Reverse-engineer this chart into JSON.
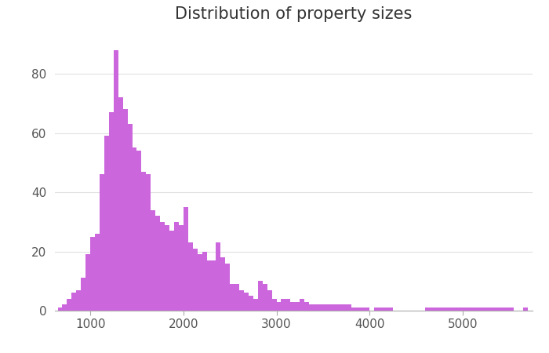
{
  "title": "Distribution of property sizes",
  "title_fontsize": 15,
  "bar_color": "#cc66dd",
  "bar_edgecolor": "#cc66dd",
  "background_color": "#ffffff",
  "xlim": [
    620,
    5750
  ],
  "ylim": [
    0,
    93
  ],
  "yticks": [
    0,
    20,
    40,
    60,
    80
  ],
  "xticks": [
    1000,
    2000,
    3000,
    4000,
    5000
  ],
  "grid_color": "#cccccc",
  "grid_alpha": 0.6,
  "bin_edges": [
    650,
    700,
    750,
    800,
    850,
    900,
    950,
    1000,
    1050,
    1100,
    1150,
    1200,
    1250,
    1300,
    1350,
    1400,
    1450,
    1500,
    1550,
    1600,
    1650,
    1700,
    1750,
    1800,
    1850,
    1900,
    1950,
    2000,
    2050,
    2100,
    2150,
    2200,
    2250,
    2300,
    2350,
    2400,
    2450,
    2500,
    2550,
    2600,
    2650,
    2700,
    2750,
    2800,
    2850,
    2900,
    2950,
    3000,
    3050,
    3100,
    3150,
    3200,
    3250,
    3300,
    3350,
    3400,
    3450,
    3500,
    3550,
    3600,
    3650,
    3700,
    3750,
    3800,
    3850,
    3900,
    3950,
    4000,
    4050,
    4100,
    4150,
    4200,
    4250,
    4300,
    4350,
    4400,
    4450,
    4550,
    4600,
    5500,
    5550,
    5600,
    5650,
    5700
  ],
  "bin_heights": [
    1,
    2,
    4,
    6,
    7,
    11,
    19,
    25,
    26,
    46,
    59,
    67,
    88,
    72,
    68,
    63,
    55,
    54,
    47,
    46,
    34,
    32,
    30,
    29,
    27,
    30,
    29,
    35,
    23,
    21,
    19,
    20,
    17,
    17,
    23,
    18,
    16,
    9,
    9,
    7,
    6,
    5,
    4,
    10,
    9,
    7,
    4,
    3,
    4,
    4,
    3,
    3,
    4,
    3,
    2,
    2,
    2,
    2,
    2,
    2,
    2,
    2,
    2,
    1,
    1,
    1,
    1,
    0,
    1,
    1,
    1,
    1,
    0,
    0,
    0,
    0,
    0,
    0,
    1,
    1,
    0,
    0,
    1
  ]
}
